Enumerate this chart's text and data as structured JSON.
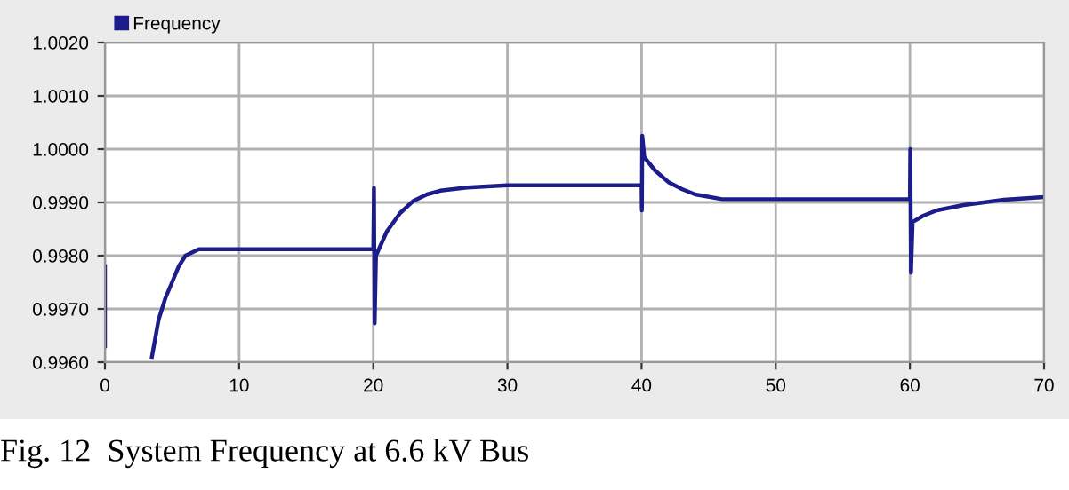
{
  "chart_data": {
    "type": "line",
    "xlim": [
      0,
      70
    ],
    "xticks": [
      0,
      10,
      20,
      30,
      40,
      50,
      60,
      70
    ],
    "ylim": [
      0.996,
      1.002
    ],
    "yticks": [
      {
        "value": 0.996,
        "label": "0.9960"
      },
      {
        "value": 0.997,
        "label": "0.9970"
      },
      {
        "value": 0.998,
        "label": "0.9980"
      },
      {
        "value": 0.999,
        "label": "0.9990"
      },
      {
        "value": 1.0,
        "label": "1.0000"
      },
      {
        "value": 1.001,
        "label": "1.0010"
      },
      {
        "value": 1.002,
        "label": "1.0020"
      }
    ],
    "grid": true,
    "legend": "top left",
    "annotations": [
      "Fig. 12  System Frequency at 6.6 kV Bus"
    ],
    "series": [
      {
        "name": "Frequency",
        "color": "#1c1c8a",
        "x": [
          0,
          0,
          0.05,
          3.5,
          4,
          4.5,
          5,
          5.5,
          6,
          7,
          20,
          20.05,
          20.1,
          20.2,
          21,
          22,
          23,
          24,
          25,
          27,
          30,
          40,
          40.02,
          40.05,
          40.2,
          41,
          42,
          43,
          44,
          46,
          50,
          60,
          60.03,
          60.08,
          60.2,
          61,
          62,
          64,
          67,
          70
        ],
        "values": [
          0.9978,
          0.9963,
          null,
          0.9961,
          0.9968,
          0.9972,
          0.9975,
          0.9978,
          0.998,
          0.99812,
          0.99812,
          0.99927,
          0.99673,
          0.998,
          0.99845,
          0.9988,
          0.99903,
          0.99915,
          0.99922,
          0.99928,
          0.99932,
          0.99932,
          0.99885,
          1.00025,
          0.99985,
          0.9996,
          0.99938,
          0.99925,
          0.99915,
          0.99906,
          0.99906,
          0.99906,
          1.0,
          0.99768,
          0.99863,
          0.99875,
          0.99885,
          0.99895,
          0.99905,
          0.9991
        ]
      }
    ]
  }
}
